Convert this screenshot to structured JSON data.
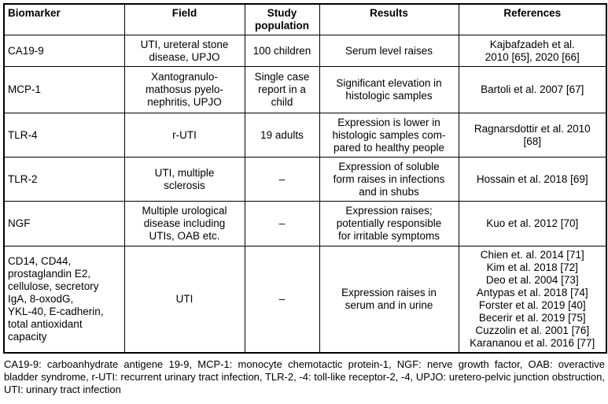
{
  "table": {
    "headers": [
      "Biomarker",
      "Field",
      "Study\npopulation",
      "Results",
      "References"
    ],
    "rows": [
      [
        "CA19-9",
        "UTI, ureteral stone\ndisease, UPJO",
        "100 children",
        "Serum level raises",
        "Kajbafzadeh et al.\n2010 [65], 2020 [66]"
      ],
      [
        "MCP-1",
        "Xantogranulo-\nmathosus pyelo-\nnephritis, UPJO",
        "Single case\nreport in a\nchild",
        "Significant elevation in\nhistologic samples",
        "Bartoli et al. 2007 [67]"
      ],
      [
        "TLR-4",
        "r-UTI",
        "19 adults",
        "Expression is lower in\nhistologic samples com-\npared to healthy people",
        "Ragnarsdottir et al. 2010\n[68]"
      ],
      [
        "TLR-2",
        "UTI, multiple\nsclerosis",
        "–",
        "Expression of soluble\nform raises in infections\nand in shubs",
        "Hossain et al. 2018 [69]"
      ],
      [
        "NGF",
        "Multiple urological\ndisease including\nUTIs, OAB etc.",
        "–",
        "Expression raises;\npotentially responsible\nfor irritable symptoms",
        "Kuo et al. 2012 [70]"
      ],
      [
        "CD14, CD44,\nprostaglandin E2,\ncellulose, secretory\nIgA, 8-oxodG,\nYKL-40, E-cadherin,\ntotal antioxidant\ncapacity",
        "UTI",
        "–",
        "Expression raises in\nserum and in urine",
        "Chien et. al. 2014 [71]\nKim et al. 2018 [72]\nDeo et al. 2004 [73]\nAntypas et al. 2018 [74]\nForster et al. 2019 [40]\nBecerir et al. 2019 [75]\nCuzzolin et al. 2001 [76]\nKarananou et al. 2016 [77]"
      ]
    ]
  },
  "footnote": "CA19-9: carboanhydrate antigene 19-9, MCP-1: monocyte chemotactic protein-1, NGF: nerve growth factor, OAB: overactive bladder syndrome, r-UTI: recurrent urinary tract infection, TLR-2, -4: toll-like receptor-2, -4, UPJO: uretero-pelvic junction obstruction, UTI: urinary tract infection"
}
